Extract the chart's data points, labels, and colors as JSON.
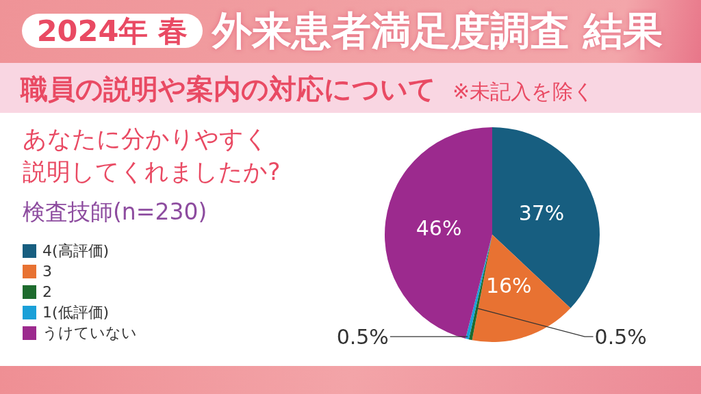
{
  "chart_data": {
    "type": "pie",
    "title": "外来患者満足度調査 結果",
    "subtitle": "職員の説明や案内の対応について",
    "annotations": [
      "2024年 春",
      "※未記入を除く",
      "あなたに分かりやすく説明してくれましたか?",
      "検査技師(n=230)"
    ],
    "categories": [
      "4(高評価)",
      "3",
      "2",
      "1(低評価)",
      "うけていない"
    ],
    "values": [
      37,
      16,
      0.5,
      0.5,
      46
    ],
    "colors": [
      "#175e80",
      "#e87232",
      "#1e6b2e",
      "#1aa0d8",
      "#9c2a8e"
    ],
    "value_labels": [
      "37%",
      "16%",
      "0.5%",
      "0.5%",
      "46%"
    ],
    "legend": "left"
  }
}
